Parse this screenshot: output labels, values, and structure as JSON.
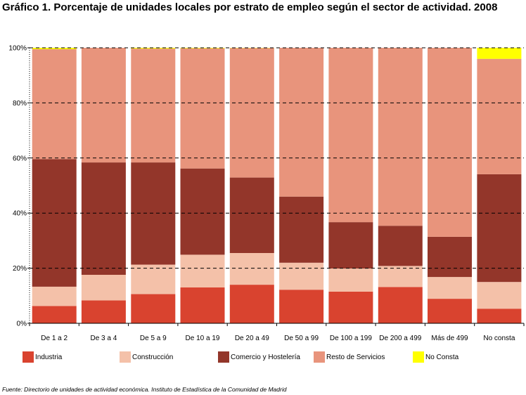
{
  "title": "Gráfico 1. Porcentaje de unidades locales por estrato de empleo según el sector de actividad. 2008",
  "source": "Fuente: Directorio de unidades de actividad económica. Instituto de Estadística de la Comunidad de Madrid",
  "chart_data": {
    "type": "bar",
    "stacked": true,
    "categories": [
      "De 1 a 2",
      "De 3 a 4",
      "De 5 a 9",
      "De 10 a 19",
      "De 20 a 49",
      "De 50 a 99",
      "De 100 a 199",
      "De 200 a 499",
      "Más de 499",
      "No consta"
    ],
    "series": [
      {
        "name": "Industria",
        "color": "#d9432f",
        "values": [
          6.3,
          8.3,
          10.6,
          13.0,
          14.0,
          12.2,
          11.5,
          13.2,
          8.9,
          5.3
        ]
      },
      {
        "name": "Construcción",
        "color": "#f4c1a9",
        "values": [
          7.0,
          9.3,
          10.7,
          11.9,
          11.5,
          9.8,
          8.4,
          7.6,
          7.9,
          9.7
        ]
      },
      {
        "name": "Comercio y Hostelería",
        "color": "#93362a",
        "values": [
          46.3,
          40.8,
          37.1,
          31.3,
          27.4,
          24.0,
          16.8,
          14.6,
          14.6,
          39.1
        ]
      },
      {
        "name": "Resto de Servicios",
        "color": "#e8947c",
        "values": [
          39.9,
          41.6,
          41.3,
          43.6,
          47.0,
          54.0,
          63.3,
          64.6,
          68.6,
          41.9
        ]
      },
      {
        "name": "No Consta",
        "color": "#ffff00",
        "values": [
          0.5,
          0.0,
          0.3,
          0.2,
          0.1,
          0.0,
          0.0,
          0.0,
          0.0,
          4.0
        ]
      }
    ],
    "ylim": [
      0,
      100
    ],
    "yticks": [
      0,
      20,
      40,
      60,
      80,
      100
    ],
    "ytick_labels": [
      "0%",
      "20%",
      "40%",
      "60%",
      "80%",
      "100%"
    ],
    "grid": true,
    "legend_position": "bottom"
  }
}
